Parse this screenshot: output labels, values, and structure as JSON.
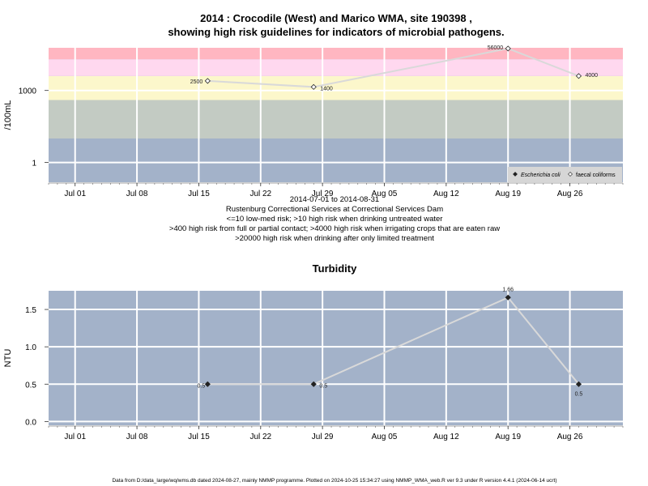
{
  "top": {
    "title_line1": "2014 : Crocodile (West) and Marico WMA, site 190398 ,",
    "title_line2": "showing high risk guidelines for indicators of microbial pathogens.",
    "ylabel": "/100mL",
    "legend": {
      "ecoli": "Escherichia coli",
      "faecal": "faecal coliforms"
    },
    "notes": [
      "2014-07-01 to 2014-08-31",
      "Rustenburg Correctional Services at Correctional Services Dam",
      "<=10 low-med risk; >10 high risk when drinking untreated water",
      ">400 high risk from full or partial contact; >4000 high risk when irrigating crops that are eaten raw",
      ">20000 high risk when drinking after only limited treatment"
    ]
  },
  "bottom": {
    "title": "Turbidity",
    "ylabel": "NTU"
  },
  "footer": "Data from D:/data_large/wq/wms.db dated 2024-08-27, mainly NMMP programme. Plotted on 2024-10-25 15:34:27 using NMMP_WMA_web.R ver 9.3 under R version 4.4.1 (2024-06-14 ucrt)",
  "colors": {
    "panel_bg": "#a3b2c9",
    "band_green": "#c3cbc3",
    "band_yellow": "#fcf7cb",
    "band_pink": "#ffd8ef",
    "band_red": "#ffb6c1",
    "series_line": "#d9d9d9",
    "grid": "#ffffff"
  },
  "chart_data": [
    {
      "type": "line",
      "title": "2014 : Crocodile (West) and Marico WMA, site 190398 , showing high risk guidelines for indicators of microbial pathogens.",
      "ylabel": "/100mL",
      "y_scale": "log",
      "x_tick_labels": [
        "Jul 01",
        "Jul 08",
        "Jul 15",
        "Jul 22",
        "Jul 29",
        "Aug 05",
        "Aug 12",
        "Aug 19",
        "Aug 26"
      ],
      "x_ticks": [
        "2014-07-01",
        "2014-07-08",
        "2014-07-15",
        "2014-07-22",
        "2014-07-29",
        "2014-08-05",
        "2014-08-12",
        "2014-08-19",
        "2014-08-26"
      ],
      "xlim": [
        "2014-06-28",
        "2014-09-01"
      ],
      "y_tick_labels": [
        "1",
        "1000"
      ],
      "y_ticks": [
        1,
        1000
      ],
      "ylim": [
        0.15,
        60000
      ],
      "risk_bands": [
        {
          "from": 0.15,
          "to": 10,
          "color": "#a3b2c9"
        },
        {
          "from": 10,
          "to": 400,
          "color": "#c3cbc3"
        },
        {
          "from": 400,
          "to": 4000,
          "color": "#fcf7cb"
        },
        {
          "from": 4000,
          "to": 20000,
          "color": "#ffd8ef"
        },
        {
          "from": 20000,
          "to": 60000,
          "color": "#ffb6c1"
        }
      ],
      "series": [
        {
          "name": "faecal coliforms",
          "marker": "open-diamond",
          "x": [
            "2014-07-16",
            "2014-07-28",
            "2014-08-19",
            "2014-08-27"
          ],
          "y": [
            2500,
            1400,
            56000,
            4000
          ],
          "labels": [
            "2500",
            "1400",
            "56000",
            "4000"
          ]
        },
        {
          "name": "Escherichia coli",
          "marker": "filled-diamond",
          "x": [],
          "y": []
        }
      ],
      "legend": "bottom-right",
      "grid": true
    },
    {
      "type": "line",
      "title": "Turbidity",
      "ylabel": "NTU",
      "x_tick_labels": [
        "Jul 01",
        "Jul 08",
        "Jul 15",
        "Jul 22",
        "Jul 29",
        "Aug 05",
        "Aug 12",
        "Aug 19",
        "Aug 26"
      ],
      "x_ticks": [
        "2014-07-01",
        "2014-07-08",
        "2014-07-15",
        "2014-07-22",
        "2014-07-29",
        "2014-08-05",
        "2014-08-12",
        "2014-08-19",
        "2014-08-26"
      ],
      "xlim": [
        "2014-06-28",
        "2014-09-01"
      ],
      "y_tick_labels": [
        "0.0",
        "0.5",
        "1.0",
        "1.5"
      ],
      "y_ticks": [
        0,
        0.5,
        1.0,
        1.5
      ],
      "ylim": [
        -0.05,
        1.75
      ],
      "series": [
        {
          "marker": "filled-diamond",
          "x": [
            "2014-07-16",
            "2014-07-28",
            "2014-08-19",
            "2014-08-27"
          ],
          "y": [
            0.5,
            0.5,
            1.66,
            0.5
          ],
          "labels": [
            "0.5",
            "0.5",
            "1.66",
            "0.5"
          ]
        }
      ],
      "grid": true
    }
  ]
}
